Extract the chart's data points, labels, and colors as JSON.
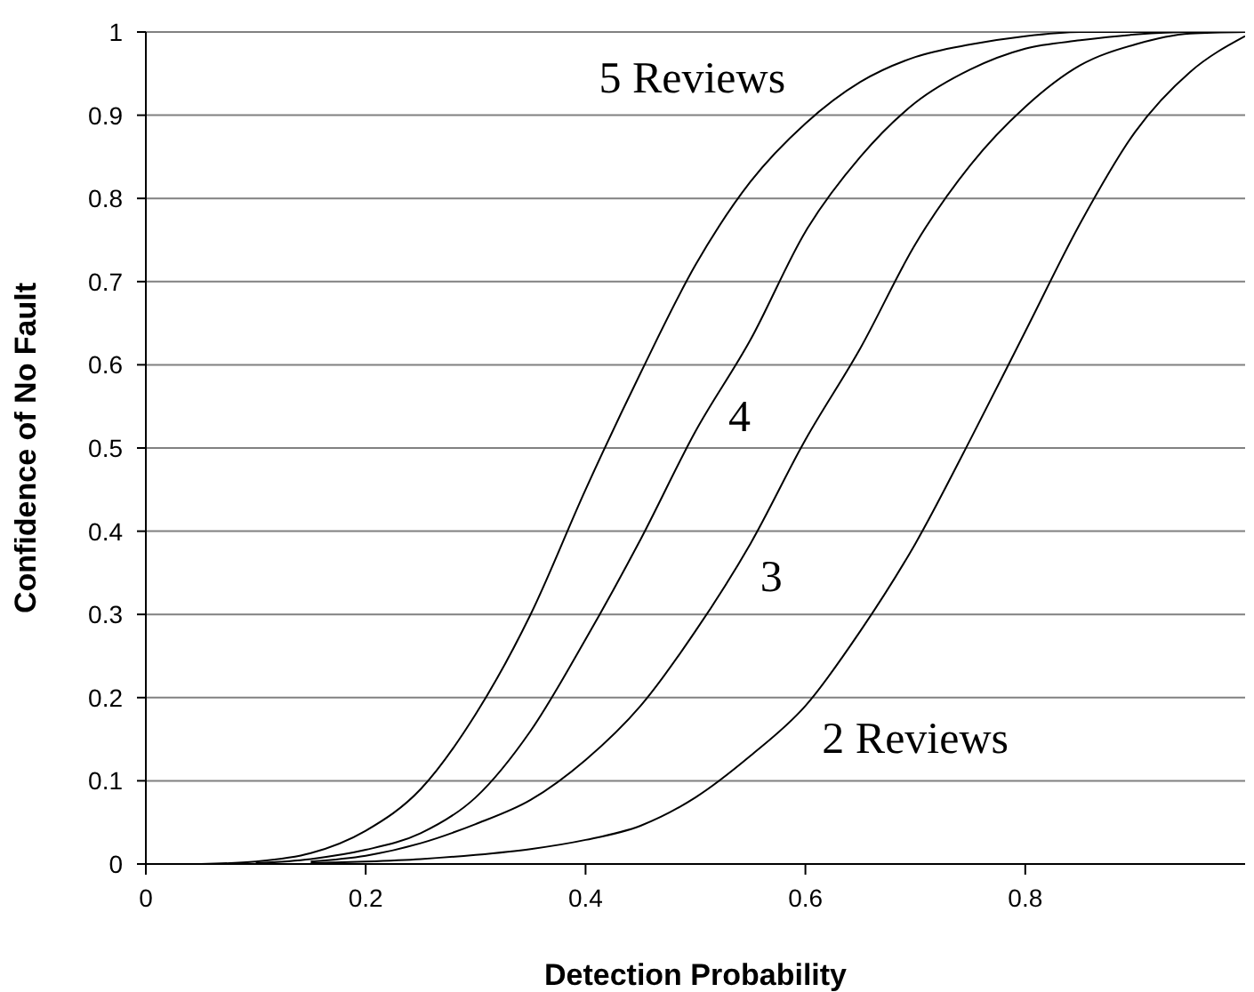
{
  "chart_data": {
    "type": "line",
    "xlabel": "Detection Probability",
    "ylabel": "Confidence of No Fault",
    "series": [
      {
        "name": "5 Reviews",
        "color": "#000000",
        "x": [
          0.05,
          0.1,
          0.15,
          0.2,
          0.25,
          0.3,
          0.35,
          0.4,
          0.45,
          0.5,
          0.55,
          0.6,
          0.65,
          0.7,
          0.75,
          0.8,
          0.85,
          0.9,
          0.95,
          1
        ],
        "values": [
          0,
          0.003,
          0.013,
          0.04,
          0.09,
          0.18,
          0.3,
          0.45,
          0.59,
          0.72,
          0.82,
          0.89,
          0.94,
          0.97,
          0.985,
          0.995,
          1,
          1,
          1,
          1
        ]
      },
      {
        "name": "4",
        "color": "#000000",
        "x": [
          0.1,
          0.15,
          0.2,
          0.25,
          0.3,
          0.35,
          0.4,
          0.45,
          0.5,
          0.55,
          0.6,
          0.65,
          0.7,
          0.75,
          0.8,
          0.85,
          0.9,
          0.95,
          1
        ],
        "values": [
          0.001,
          0.006,
          0.017,
          0.037,
          0.08,
          0.16,
          0.27,
          0.39,
          0.52,
          0.63,
          0.76,
          0.85,
          0.915,
          0.955,
          0.98,
          0.99,
          0.997,
          1,
          1
        ]
      },
      {
        "name": "3",
        "color": "#000000",
        "x": [
          0.15,
          0.2,
          0.25,
          0.3,
          0.35,
          0.4,
          0.45,
          0.5,
          0.55,
          0.6,
          0.65,
          0.7,
          0.75,
          0.8,
          0.85,
          0.9,
          0.95,
          1
        ],
        "values": [
          0.003,
          0.01,
          0.025,
          0.048,
          0.077,
          0.125,
          0.19,
          0.28,
          0.385,
          0.51,
          0.62,
          0.745,
          0.84,
          0.91,
          0.96,
          0.985,
          0.998,
          1
        ]
      },
      {
        "name": "2 Reviews",
        "color": "#000000",
        "x": [
          0.15,
          0.2,
          0.25,
          0.3,
          0.35,
          0.4,
          0.45,
          0.5,
          0.55,
          0.6,
          0.65,
          0.7,
          0.75,
          0.8,
          0.85,
          0.9,
          0.95,
          1
        ],
        "values": [
          0.001,
          0.003,
          0.006,
          0.011,
          0.018,
          0.029,
          0.046,
          0.08,
          0.13,
          0.19,
          0.28,
          0.385,
          0.51,
          0.64,
          0.77,
          0.88,
          0.952,
          0.995
        ]
      }
    ],
    "xlim": [
      0,
      1
    ],
    "xticks": [
      0,
      0.2,
      0.4,
      0.6,
      0.8
    ],
    "ylim": [
      0,
      1
    ],
    "yticks": [
      0,
      0.1,
      0.2,
      0.3,
      0.4,
      0.5,
      0.6,
      0.7,
      0.8,
      0.9,
      1
    ],
    "grid": "y",
    "legend": false,
    "marker": "none",
    "line_style": "solid"
  }
}
